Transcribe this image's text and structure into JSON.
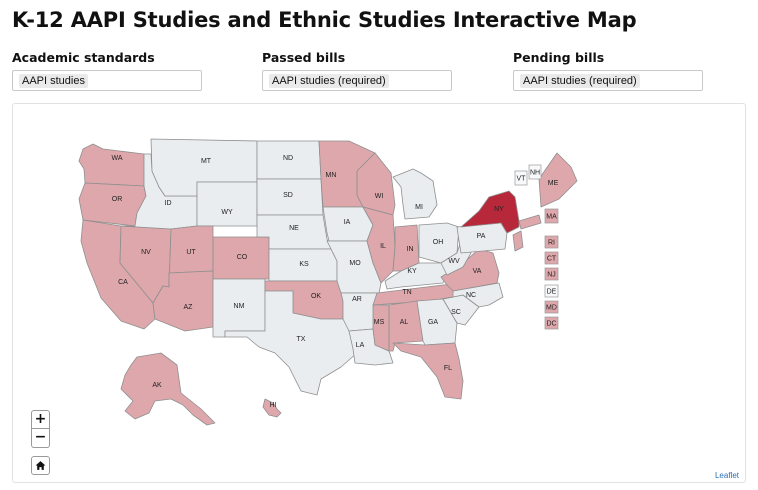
{
  "page": {
    "title": "K-12 AAPI Studies and Ethnic Studies Interactive Map"
  },
  "filters": [
    {
      "label": "Academic standards",
      "value": "AAPI studies"
    },
    {
      "label": "Passed bills",
      "value": "AAPI studies (required)"
    },
    {
      "label": "Pending bills",
      "value": "AAPI studies (required)"
    }
  ],
  "colors": {
    "none": "#e9edef",
    "pink": "#dea7ac",
    "red": "#b8283b"
  },
  "map": {
    "states": [
      {
        "abbr": "WA",
        "cat": "pink"
      },
      {
        "abbr": "OR",
        "cat": "pink"
      },
      {
        "abbr": "CA",
        "cat": "pink"
      },
      {
        "abbr": "NV",
        "cat": "pink"
      },
      {
        "abbr": "ID",
        "cat": "none"
      },
      {
        "abbr": "MT",
        "cat": "none"
      },
      {
        "abbr": "WY",
        "cat": "none"
      },
      {
        "abbr": "UT",
        "cat": "pink"
      },
      {
        "abbr": "AZ",
        "cat": "pink"
      },
      {
        "abbr": "CO",
        "cat": "pink"
      },
      {
        "abbr": "NM",
        "cat": "none"
      },
      {
        "abbr": "ND",
        "cat": "none"
      },
      {
        "abbr": "SD",
        "cat": "none"
      },
      {
        "abbr": "NE",
        "cat": "none"
      },
      {
        "abbr": "KS",
        "cat": "none"
      },
      {
        "abbr": "OK",
        "cat": "pink"
      },
      {
        "abbr": "TX",
        "cat": "none"
      },
      {
        "abbr": "MN",
        "cat": "pink"
      },
      {
        "abbr": "IA",
        "cat": "none"
      },
      {
        "abbr": "MO",
        "cat": "none"
      },
      {
        "abbr": "AR",
        "cat": "none"
      },
      {
        "abbr": "LA",
        "cat": "none"
      },
      {
        "abbr": "WI",
        "cat": "pink"
      },
      {
        "abbr": "IL",
        "cat": "pink"
      },
      {
        "abbr": "MI",
        "cat": "none"
      },
      {
        "abbr": "IN",
        "cat": "pink"
      },
      {
        "abbr": "OH",
        "cat": "none"
      },
      {
        "abbr": "KY",
        "cat": "none"
      },
      {
        "abbr": "TN",
        "cat": "pink"
      },
      {
        "abbr": "MS",
        "cat": "pink"
      },
      {
        "abbr": "AL",
        "cat": "pink"
      },
      {
        "abbr": "GA",
        "cat": "none"
      },
      {
        "abbr": "FL",
        "cat": "pink"
      },
      {
        "abbr": "SC",
        "cat": "none"
      },
      {
        "abbr": "NC",
        "cat": "none"
      },
      {
        "abbr": "VA",
        "cat": "pink"
      },
      {
        "abbr": "WV",
        "cat": "none"
      },
      {
        "abbr": "PA",
        "cat": "none"
      },
      {
        "abbr": "NY",
        "cat": "red"
      },
      {
        "abbr": "ME",
        "cat": "pink"
      },
      {
        "abbr": "AK",
        "cat": "pink"
      },
      {
        "abbr": "HI",
        "cat": "pink"
      }
    ],
    "northeast": [
      {
        "abbr": "VT",
        "cat": "none"
      },
      {
        "abbr": "NH",
        "cat": "none"
      },
      {
        "abbr": "MA",
        "cat": "pink"
      },
      {
        "abbr": "RI",
        "cat": "pink"
      },
      {
        "abbr": "CT",
        "cat": "pink"
      },
      {
        "abbr": "NJ",
        "cat": "pink"
      },
      {
        "abbr": "DE",
        "cat": "none"
      },
      {
        "abbr": "MD",
        "cat": "pink"
      },
      {
        "abbr": "DC",
        "cat": "pink"
      }
    ]
  },
  "controls": {
    "zoom_in": "+",
    "zoom_out": "−",
    "home_icon": "home-icon"
  },
  "attribution": "Leaflet"
}
